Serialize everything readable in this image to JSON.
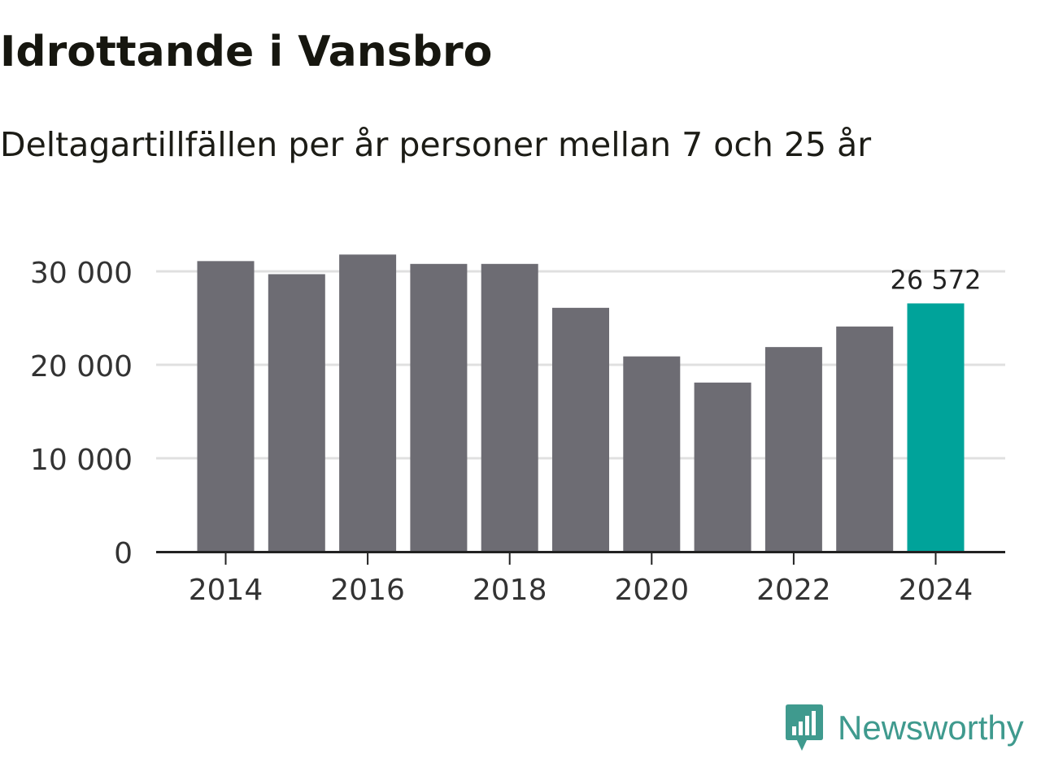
{
  "title": "Idrottande i Vansbro",
  "subtitle": "Deltagartillfällen per år personer mellan 7 och 25 år",
  "chart_data": {
    "type": "bar",
    "x": [
      2014,
      2015,
      2016,
      2017,
      2018,
      2019,
      2020,
      2021,
      2022,
      2023,
      2024
    ],
    "values": [
      31100,
      29700,
      31800,
      30800,
      30800,
      26100,
      20900,
      18100,
      21900,
      24100,
      26572
    ],
    "ylim": [
      0,
      32000
    ],
    "yticks": [
      0,
      10000,
      20000,
      30000
    ],
    "ytick_labels": [
      "0",
      "10 000",
      "20 000",
      "30 000"
    ],
    "xticks": [
      2014,
      2016,
      2018,
      2020,
      2022,
      2024
    ],
    "xtick_labels": [
      "2014",
      "2016",
      "2018",
      "2020",
      "2022",
      "2024"
    ],
    "highlight_index": 10,
    "highlight_label": "26 572",
    "colors": {
      "bar": "#6d6c73",
      "highlight": "#00a39a",
      "grid": "#e0e0e0",
      "axis": "#222222",
      "text": "#333333"
    }
  },
  "brand": {
    "name": "Newsworthy",
    "icon": "newsworthy-logo-icon",
    "color": "#3f9a8e"
  }
}
